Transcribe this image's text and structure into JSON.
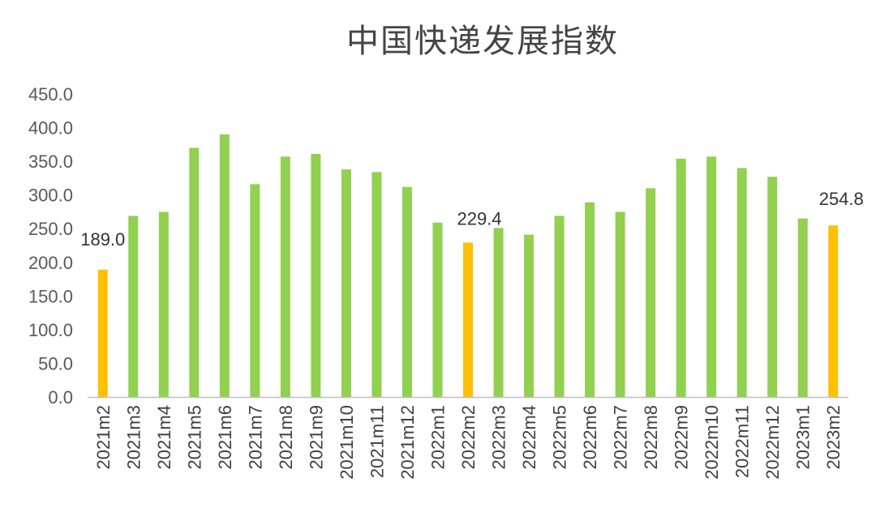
{
  "chart_data": {
    "type": "bar",
    "title": "中国快递发展指数",
    "xlabel": "",
    "ylabel": "",
    "ylim": [
      0,
      450
    ],
    "yticks": [
      "0.0",
      "50.0",
      "100.0",
      "150.0",
      "200.0",
      "250.0",
      "300.0",
      "350.0",
      "400.0",
      "450.0"
    ],
    "grid": false,
    "legend": "none",
    "categories": [
      "2021m2",
      "2021m3",
      "2021m4",
      "2021m5",
      "2021m6",
      "2021m7",
      "2021m8",
      "2021m9",
      "2021m10",
      "2021m11",
      "2021m12",
      "2022m1",
      "2022m2",
      "2022m3",
      "2022m4",
      "2022m5",
      "2022m6",
      "2022m7",
      "2022m8",
      "2022m9",
      "2022m10",
      "2022m11",
      "2022m12",
      "2023m1",
      "2023m2"
    ],
    "values": [
      189.0,
      269,
      275,
      370,
      390,
      316,
      357,
      361,
      338,
      334,
      312,
      259,
      229.4,
      251,
      241,
      269,
      289,
      275,
      310,
      354,
      357,
      340,
      327,
      265,
      254.8
    ],
    "highlight_indices": [
      0,
      12,
      24
    ],
    "data_labels": [
      {
        "index": 0,
        "text": "189.0"
      },
      {
        "index": 12,
        "text": "229.4"
      },
      {
        "index": 24,
        "text": "254.8"
      }
    ],
    "colors": {
      "bar": "#92d050",
      "highlight": "#ffc000",
      "axis": "#bfbfbf"
    }
  }
}
